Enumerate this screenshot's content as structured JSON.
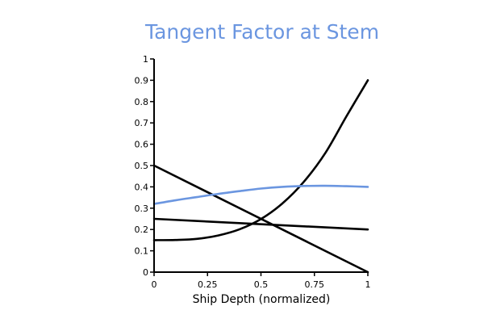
{
  "chart_data": {
    "type": "line",
    "title": "Tangent Factor at Stem",
    "xlabel": "Ship Depth (normalized)",
    "ylabel": "",
    "xlim": [
      0,
      1
    ],
    "ylim": [
      0,
      1
    ],
    "x_ticks": [
      "0",
      "0.25",
      "0.5",
      "0.75",
      "1"
    ],
    "y_ticks": [
      "0",
      "0.1",
      "0.2",
      "0.3",
      "0.4",
      "0.5",
      "0.6",
      "0.7",
      "0.8",
      "0.9",
      "1"
    ],
    "grid": false,
    "legend": "none",
    "series": [
      {
        "color": "#000000",
        "x": [
          0,
          1
        ],
        "y": [
          0.5,
          0
        ]
      },
      {
        "color": "#000000",
        "x": [
          0,
          1
        ],
        "y": [
          0.25,
          0.2
        ]
      },
      {
        "color": "#000000",
        "x": [
          0,
          0.1,
          0.2,
          0.3,
          0.4,
          0.5,
          0.6,
          0.7,
          0.8,
          0.9,
          1
        ],
        "y": [
          0.15,
          0.151,
          0.156,
          0.172,
          0.201,
          0.249,
          0.322,
          0.423,
          0.557,
          0.731,
          0.9
        ]
      },
      {
        "color": "#6b96e0",
        "x": [
          0,
          0.1,
          0.2,
          0.3,
          0.4,
          0.5,
          0.6,
          0.7,
          0.8,
          0.9,
          1
        ],
        "y": [
          0.32,
          0.337,
          0.352,
          0.367,
          0.38,
          0.392,
          0.4,
          0.404,
          0.405,
          0.403,
          0.4
        ]
      }
    ]
  }
}
